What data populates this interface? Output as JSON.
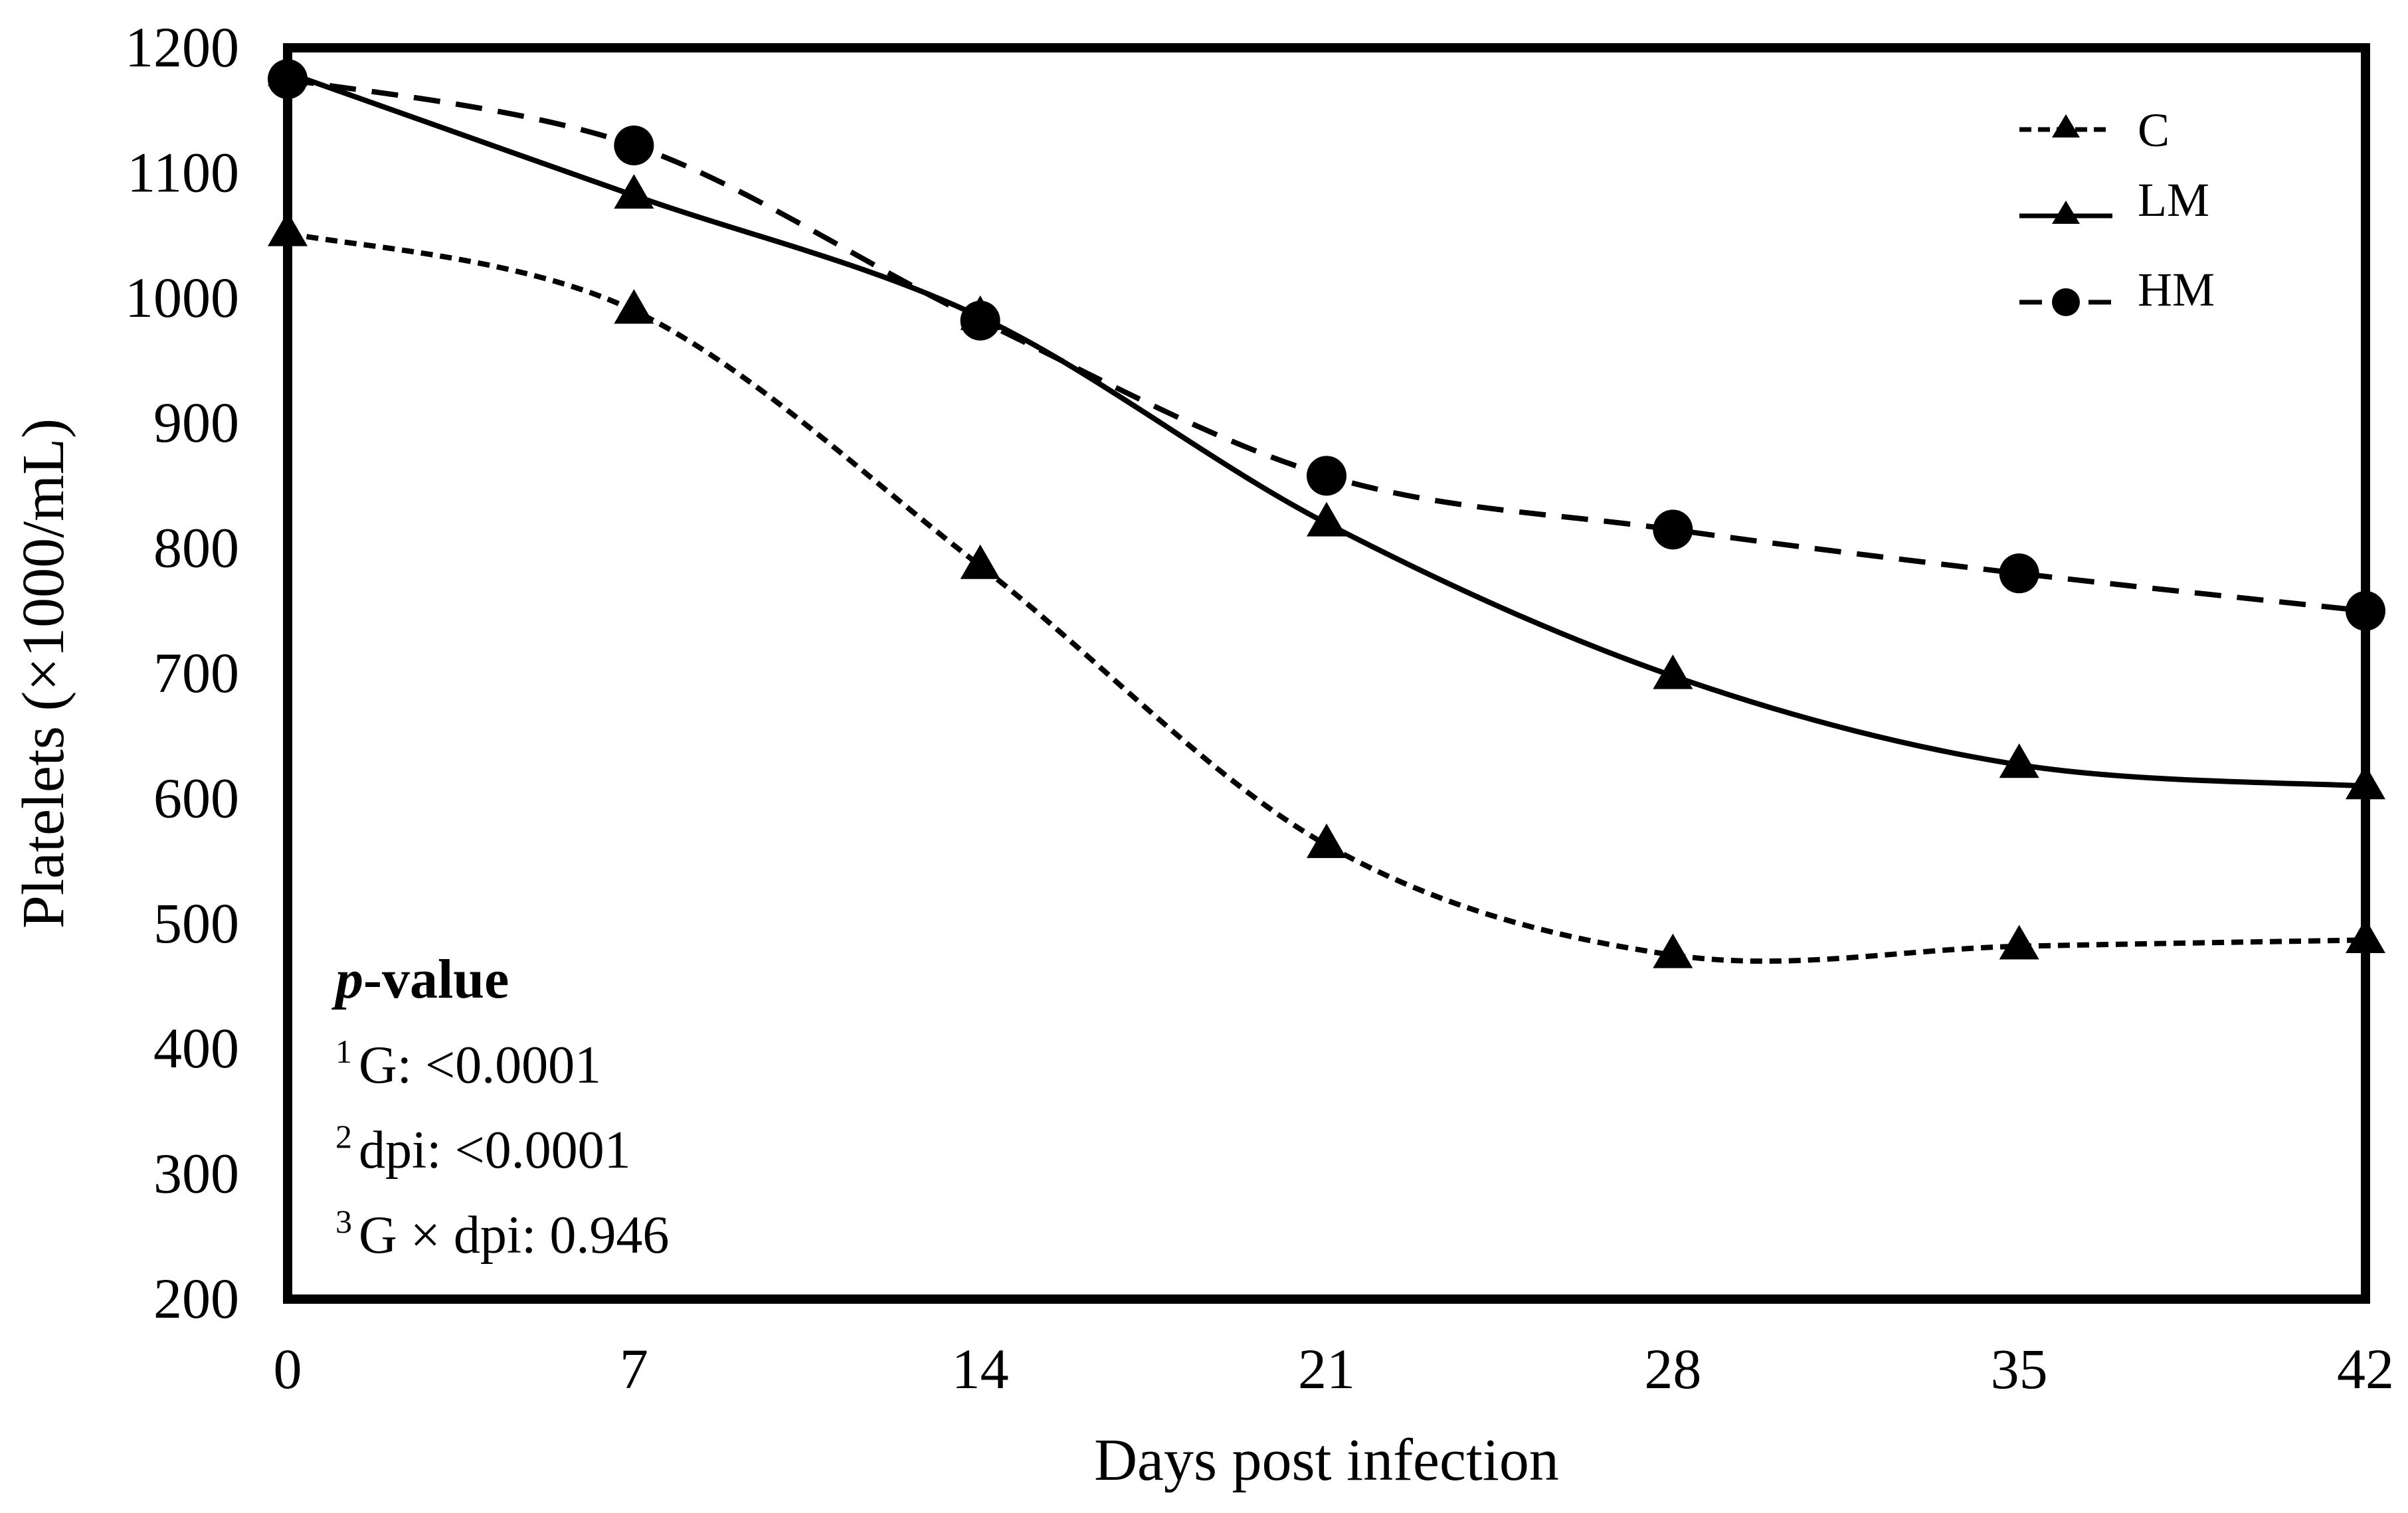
{
  "chart_data": {
    "type": "line",
    "title": "",
    "xlabel": "Days post infection",
    "ylabel": "Platelets (×1000/mL)",
    "xlim": [
      0,
      42
    ],
    "ylim": [
      200,
      1200
    ],
    "x": [
      0,
      7,
      14,
      21,
      28,
      35,
      42
    ],
    "x_tick_labels": [
      "0",
      "7",
      "14",
      "21",
      "28",
      "35",
      "42"
    ],
    "y_ticks": [
      200,
      300,
      400,
      500,
      600,
      700,
      800,
      900,
      1000,
      1100,
      1200
    ],
    "y_tick_labels": [
      "200",
      "300",
      "400",
      "500",
      "600",
      "700",
      "800",
      "900",
      "1000",
      "1100",
      "1200"
    ],
    "grid": false,
    "legend_position": "top-right",
    "series": [
      {
        "name": "C",
        "values": [
          1052,
          990,
          786,
          563,
          475,
          482,
          487
        ],
        "line_style": "short-dash",
        "marker": "triangle"
      },
      {
        "name": "LM",
        "values": [
          1180,
          1082,
          985,
          820,
          698,
          627,
          610
        ],
        "line_style": "solid",
        "marker": "triangle"
      },
      {
        "name": "HM",
        "values": [
          1175,
          1122,
          982,
          858,
          815,
          780,
          750
        ],
        "line_style": "long-dash",
        "marker": "circle"
      }
    ],
    "annotation": {
      "title_italic": "p",
      "title_rest": "-value",
      "lines": [
        {
          "sup": "1",
          "text": "G: <0.0001"
        },
        {
          "sup": "2",
          "text": "dpi: <0.0001"
        },
        {
          "sup": "3",
          "text": "G × dpi: 0.946"
        }
      ]
    }
  }
}
